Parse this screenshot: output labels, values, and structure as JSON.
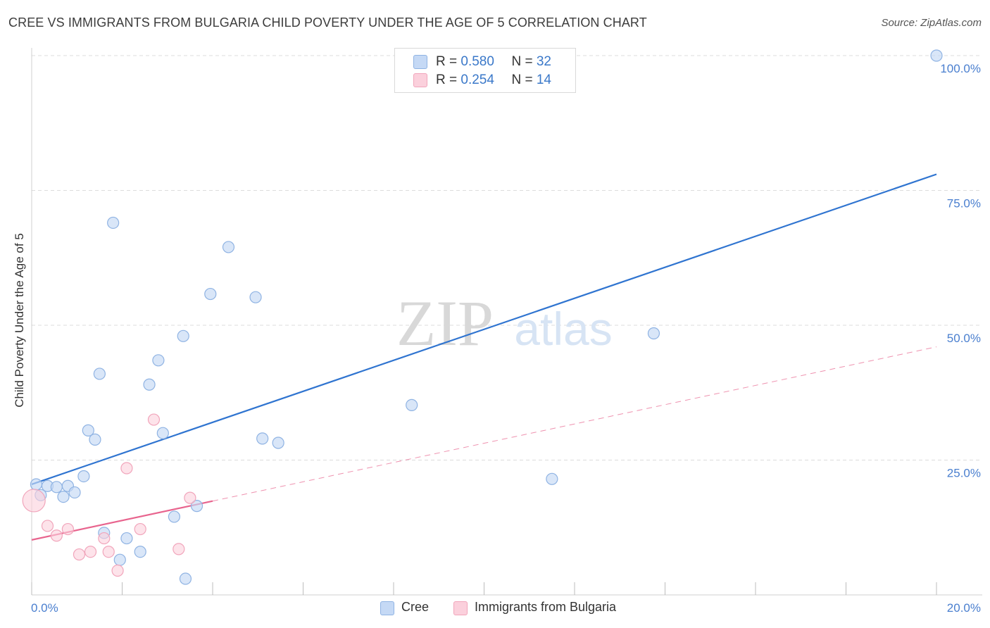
{
  "title": "CREE VS IMMIGRANTS FROM BULGARIA CHILD POVERTY UNDER THE AGE OF 5 CORRELATION CHART",
  "source": "Source: ZipAtlas.com",
  "watermark": {
    "zip": "ZIP",
    "atlas": "atlas"
  },
  "legend": {
    "cree": {
      "r_label": "R = ",
      "r_value": "0.580",
      "n_label": "N = ",
      "n_value": "32"
    },
    "bulgaria": {
      "r_label": "R = ",
      "r_value": "0.254",
      "n_label": "N = ",
      "n_value": "14"
    }
  },
  "bottom_legend": {
    "cree": "Cree",
    "bulgaria": "Immigrants from Bulgaria"
  },
  "colors": {
    "cree_fill": "#c5d9f5",
    "cree_stroke": "#8fb3e3",
    "cree_line": "#2f74d0",
    "bulgaria_fill": "#fbd0dc",
    "bulgaria_stroke": "#f1a5bb",
    "bulgaria_line": "#e8648e",
    "tick_text": "#4a7fcf",
    "grid": "#dcdcdc"
  },
  "chart_data": {
    "type": "scatter",
    "title": "CREE VS IMMIGRANTS FROM BULGARIA CHILD POVERTY UNDER THE AGE OF 5 CORRELATION CHART",
    "xlabel": "",
    "ylabel": "Child Poverty Under the Age of 5",
    "xlim": [
      0,
      20
    ],
    "ylim": [
      0,
      100
    ],
    "x_tick_labels": [
      "0.0%",
      "20.0%"
    ],
    "y_tick_labels": [
      "25.0%",
      "50.0%",
      "75.0%",
      "100.0%"
    ],
    "y_ticks": [
      25,
      50,
      75,
      100
    ],
    "grid": true,
    "series": [
      {
        "name": "Cree",
        "points": [
          [
            0.1,
            20.5
          ],
          [
            0.2,
            18.5
          ],
          [
            0.35,
            20.2
          ],
          [
            0.55,
            20.0
          ],
          [
            0.7,
            18.2
          ],
          [
            0.8,
            20.2
          ],
          [
            0.95,
            19.0
          ],
          [
            1.15,
            22.0
          ],
          [
            1.25,
            30.5
          ],
          [
            1.4,
            28.8
          ],
          [
            1.5,
            41.0
          ],
          [
            1.6,
            11.5
          ],
          [
            1.8,
            69.0
          ],
          [
            1.95,
            6.5
          ],
          [
            2.1,
            10.5
          ],
          [
            2.4,
            8.0
          ],
          [
            2.6,
            39.0
          ],
          [
            2.8,
            43.5
          ],
          [
            2.9,
            30.0
          ],
          [
            3.15,
            14.5
          ],
          [
            3.35,
            48.0
          ],
          [
            3.4,
            3.0
          ],
          [
            3.65,
            16.5
          ],
          [
            3.95,
            55.8
          ],
          [
            4.35,
            64.5
          ],
          [
            4.95,
            55.2
          ],
          [
            5.1,
            29.0
          ],
          [
            5.45,
            28.2
          ],
          [
            8.4,
            35.2
          ],
          [
            11.5,
            21.5
          ],
          [
            13.75,
            48.5
          ],
          [
            20.0,
            100.0
          ]
        ],
        "trendline": {
          "x": [
            0,
            20
          ],
          "y": [
            20.5,
            78.0
          ]
        }
      },
      {
        "name": "Immigrants from Bulgaria",
        "points": [
          [
            0.05,
            17.5
          ],
          [
            0.35,
            12.8
          ],
          [
            0.55,
            11.0
          ],
          [
            0.8,
            12.2
          ],
          [
            1.05,
            7.5
          ],
          [
            1.3,
            8.0
          ],
          [
            1.6,
            10.5
          ],
          [
            1.7,
            8.0
          ],
          [
            1.9,
            4.5
          ],
          [
            2.1,
            23.5
          ],
          [
            2.4,
            12.2
          ],
          [
            2.7,
            32.5
          ],
          [
            3.25,
            8.5
          ],
          [
            3.5,
            18.0
          ]
        ],
        "trendline": {
          "x": [
            0,
            4
          ],
          "y": [
            10.2,
            17.4
          ]
        },
        "trendline_extension": {
          "x": [
            4,
            20
          ],
          "y": [
            17.4,
            46.0
          ]
        }
      }
    ]
  }
}
